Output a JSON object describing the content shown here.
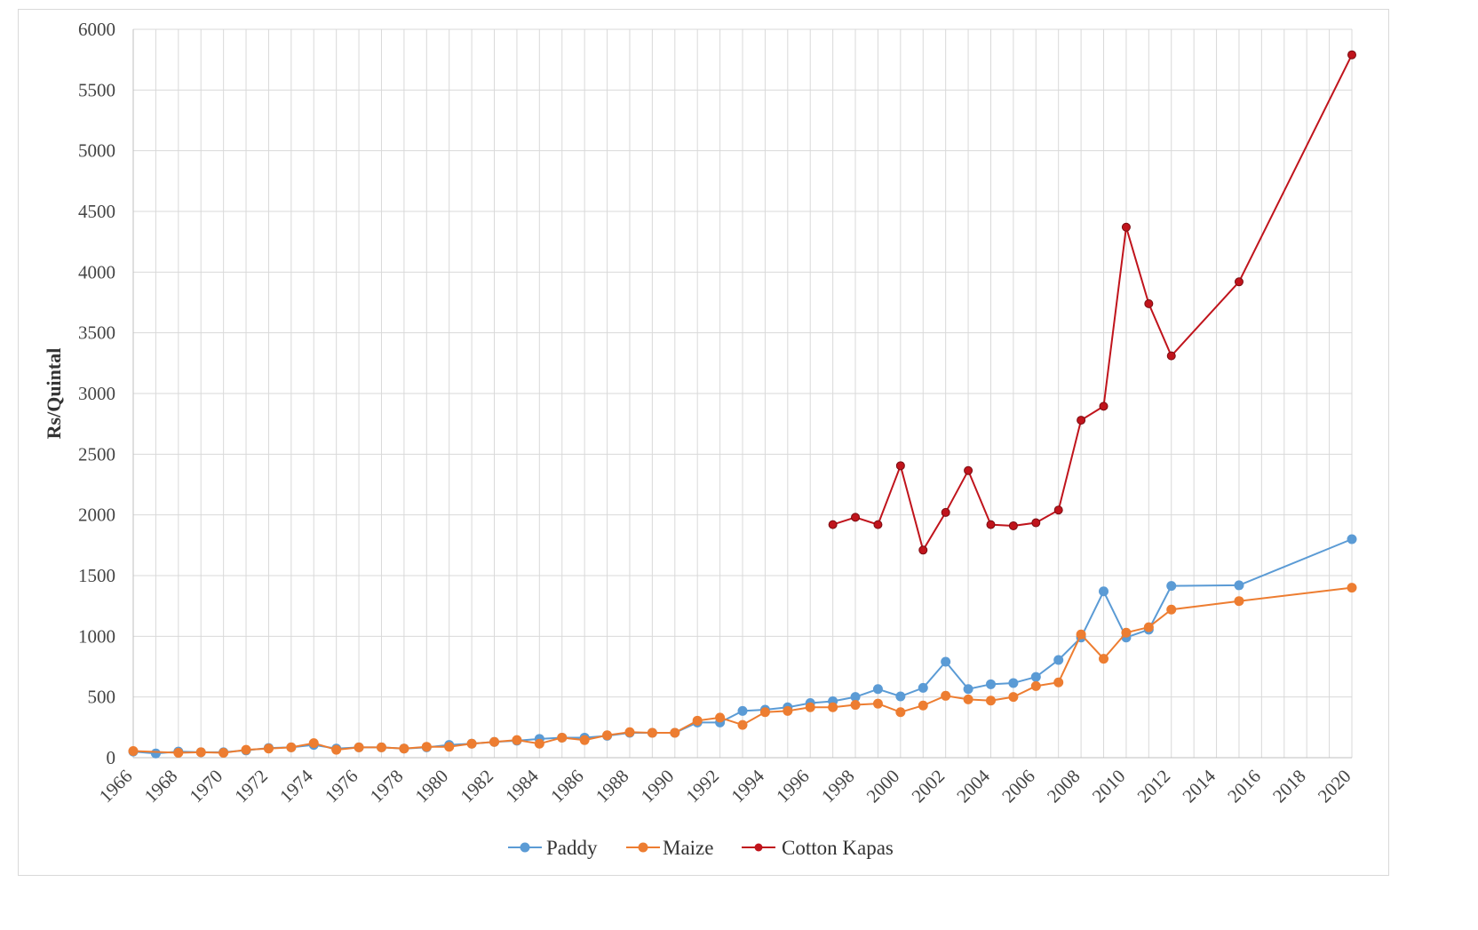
{
  "chart_data": {
    "type": "line",
    "title": "",
    "xlabel": "",
    "ylabel": "Rs/Quintal",
    "xlim": [
      1966,
      2020
    ],
    "ylim": [
      0,
      6000
    ],
    "x_ticks": [
      1966,
      1968,
      1970,
      1972,
      1974,
      1976,
      1978,
      1980,
      1982,
      1984,
      1986,
      1988,
      1990,
      1992,
      1994,
      1996,
      1998,
      2000,
      2002,
      2004,
      2006,
      2008,
      2010,
      2012,
      2014,
      2016,
      2018,
      2020
    ],
    "y_ticks": [
      0,
      500,
      1000,
      1500,
      2000,
      2500,
      3000,
      3500,
      4000,
      4500,
      5000,
      5500,
      6000
    ],
    "grid": true,
    "legend_position": "bottom",
    "series": [
      {
        "name": "Paddy",
        "color": "#5b9bd5",
        "x": [
          1966,
          1967,
          1968,
          1969,
          1970,
          1971,
          1972,
          1973,
          1974,
          1975,
          1976,
          1977,
          1978,
          1979,
          1980,
          1981,
          1982,
          1983,
          1984,
          1985,
          1986,
          1987,
          1988,
          1989,
          1990,
          1991,
          1992,
          1993,
          1994,
          1995,
          1996,
          1997,
          1998,
          1999,
          2000,
          2001,
          2002,
          2003,
          2004,
          2005,
          2006,
          2007,
          2008,
          2009,
          2010,
          2011,
          2012,
          2015,
          2020
        ],
        "y": [
          50,
          35,
          50,
          45,
          45,
          60,
          80,
          85,
          105,
          75,
          85,
          85,
          75,
          85,
          105,
          115,
          130,
          140,
          155,
          165,
          165,
          180,
          205,
          205,
          205,
          290,
          290,
          385,
          395,
          415,
          450,
          465,
          500,
          565,
          505,
          575,
          790,
          565,
          605,
          615,
          665,
          805,
          990,
          1370,
          990,
          1055,
          1415,
          1420,
          1800
        ]
      },
      {
        "name": "Maize",
        "color": "#ed7d31",
        "x": [
          1966,
          1967,
          1968,
          1969,
          1970,
          1971,
          1972,
          1973,
          1974,
          1975,
          1976,
          1977,
          1978,
          1979,
          1980,
          1981,
          1982,
          1983,
          1984,
          1985,
          1986,
          1987,
          1988,
          1989,
          1990,
          1991,
          1992,
          1993,
          1994,
          1995,
          1996,
          1997,
          1998,
          1999,
          2000,
          2001,
          2002,
          2003,
          2004,
          2005,
          2006,
          2007,
          2008,
          2009,
          2010,
          2011,
          2012,
          2015,
          2020
        ],
        "y": [
          55,
          null,
          40,
          45,
          40,
          65,
          75,
          85,
          120,
          65,
          85,
          85,
          75,
          90,
          90,
          115,
          130,
          145,
          115,
          165,
          145,
          185,
          210,
          205,
          205,
          305,
          330,
          270,
          375,
          385,
          415,
          415,
          435,
          445,
          375,
          430,
          510,
          480,
          470,
          500,
          590,
          620,
          1015,
          815,
          1030,
          1075,
          1220,
          1290,
          1400
        ]
      },
      {
        "name": "Cotton  Kapas",
        "color": "#c0141c",
        "x": [
          1997,
          1998,
          1999,
          2000,
          2001,
          2002,
          2003,
          2004,
          2005,
          2006,
          2007,
          2008,
          2009,
          2010,
          2011,
          2012,
          2015,
          2020
        ],
        "y": [
          1920,
          1980,
          1920,
          2405,
          1710,
          2020,
          2365,
          1920,
          1910,
          1935,
          2040,
          2780,
          2895,
          4370,
          3740,
          3310,
          3920,
          5790
        ]
      }
    ]
  }
}
